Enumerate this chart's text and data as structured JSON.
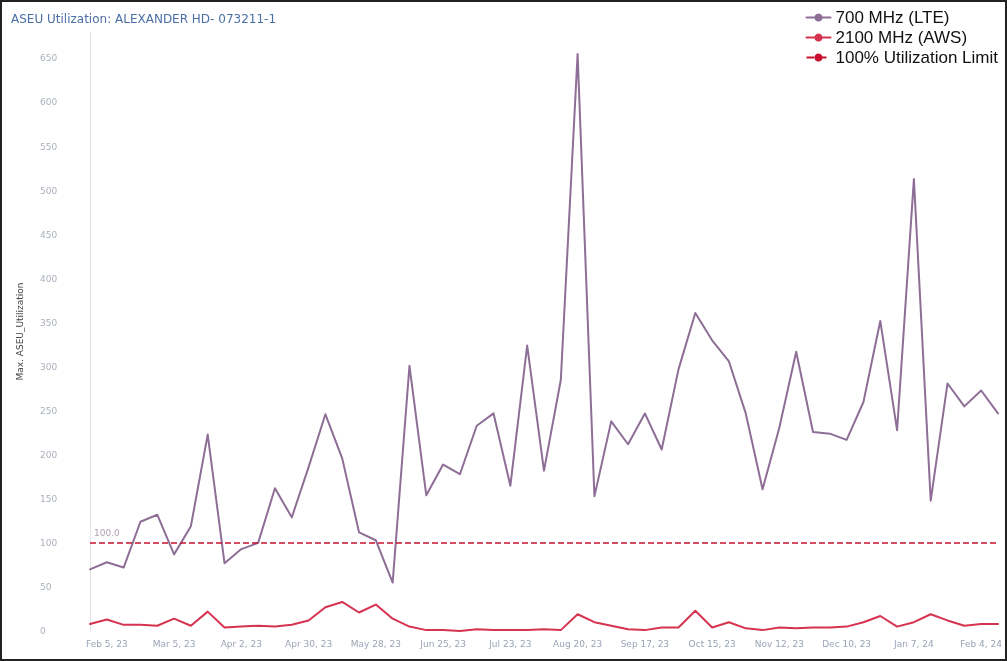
{
  "chart_data": {
    "type": "line",
    "title": "ASEU Utilization: ALEXANDER HD- 073211-1",
    "ylabel": "Max. ASEU_Utilization",
    "x": [
      "2023-01-29",
      "2023-02-05",
      "2023-02-12",
      "2023-02-19",
      "2023-02-26",
      "2023-03-05",
      "2023-03-12",
      "2023-03-19",
      "2023-03-26",
      "2023-04-02",
      "2023-04-09",
      "2023-04-16",
      "2023-04-23",
      "2023-04-30",
      "2023-05-07",
      "2023-05-14",
      "2023-05-21",
      "2023-05-28",
      "2023-06-04",
      "2023-06-11",
      "2023-06-18",
      "2023-06-25",
      "2023-07-02",
      "2023-07-09",
      "2023-07-16",
      "2023-07-23",
      "2023-07-30",
      "2023-08-06",
      "2023-08-13",
      "2023-08-20",
      "2023-08-27",
      "2023-09-03",
      "2023-09-10",
      "2023-09-17",
      "2023-09-24",
      "2023-10-01",
      "2023-10-08",
      "2023-10-15",
      "2023-10-22",
      "2023-10-29",
      "2023-11-05",
      "2023-11-12",
      "2023-11-19",
      "2023-11-26",
      "2023-12-03",
      "2023-12-10",
      "2023-12-17",
      "2023-12-24",
      "2023-12-31",
      "2024-01-07",
      "2024-01-14",
      "2024-01-21",
      "2024-01-28",
      "2024-02-04",
      "2024-02-11"
    ],
    "series": [
      {
        "name": "700 MHz (LTE)",
        "color": "#8e6e96",
        "values": [
          70,
          78,
          72,
          124,
          132,
          87,
          119,
          223,
          77,
          93,
          100,
          162,
          129,
          186,
          246,
          196,
          112,
          103,
          55,
          301,
          154,
          189,
          178,
          233,
          247,
          165,
          324,
          182,
          285,
          655,
          153,
          238,
          212,
          247,
          206,
          297,
          361,
          330,
          306,
          247,
          161,
          231,
          317,
          226,
          224,
          217,
          260,
          352,
          228,
          513,
          148,
          281,
          255,
          273,
          247
        ]
      },
      {
        "name": "2100 MHz (AWS)",
        "color": "#d6334f",
        "values": [
          8,
          13,
          7,
          7,
          6,
          14,
          6,
          22,
          4,
          5,
          6,
          5,
          7,
          12,
          27,
          33,
          21,
          30,
          14,
          5,
          1,
          1,
          0,
          2,
          1,
          1,
          1,
          2,
          1,
          19,
          10,
          6,
          2,
          1,
          4,
          4,
          23,
          4,
          10,
          3,
          1,
          4,
          3,
          4,
          4,
          5,
          10,
          17,
          5,
          10,
          19,
          12,
          6,
          8,
          8
        ]
      }
    ],
    "xlim": [
      "2023-01-29",
      "2024-02-11"
    ],
    "xticks": [
      {
        "value": "2023-02-05",
        "label": "Feb 5, 23"
      },
      {
        "value": "2023-03-05",
        "label": "Mar 5, 23"
      },
      {
        "value": "2023-04-02",
        "label": "Apr 2, 23"
      },
      {
        "value": "2023-04-30",
        "label": "Apr 30, 23"
      },
      {
        "value": "2023-05-28",
        "label": "May 28, 23"
      },
      {
        "value": "2023-06-25",
        "label": "Jun 25, 23"
      },
      {
        "value": "2023-07-23",
        "label": "Jul 23, 23"
      },
      {
        "value": "2023-08-20",
        "label": "Aug 20, 23"
      },
      {
        "value": "2023-09-17",
        "label": "Sep 17, 23"
      },
      {
        "value": "2023-10-15",
        "label": "Oct 15, 23"
      },
      {
        "value": "2023-11-12",
        "label": "Nov 12, 23"
      },
      {
        "value": "2023-12-10",
        "label": "Dec 10, 23"
      },
      {
        "value": "2024-01-07",
        "label": "Jan 7, 24"
      },
      {
        "value": "2024-02-04",
        "label": "Feb 4, 24"
      }
    ],
    "ylim": [
      0,
      680
    ],
    "yticks": [
      0,
      50,
      100,
      150,
      200,
      250,
      300,
      350,
      400,
      450,
      500,
      550,
      600,
      650
    ],
    "ref_lines": [
      {
        "axis": "y",
        "value": 100,
        "label": "100% Utilization Limit",
        "color": "#c8102e",
        "line_style": "dashed"
      }
    ],
    "annotations": [
      {
        "text": "100.0",
        "x": "2023-01-29",
        "y": 100
      }
    ],
    "legend": "top right",
    "grid": false,
    "marker": "none",
    "line_style": "solid"
  }
}
